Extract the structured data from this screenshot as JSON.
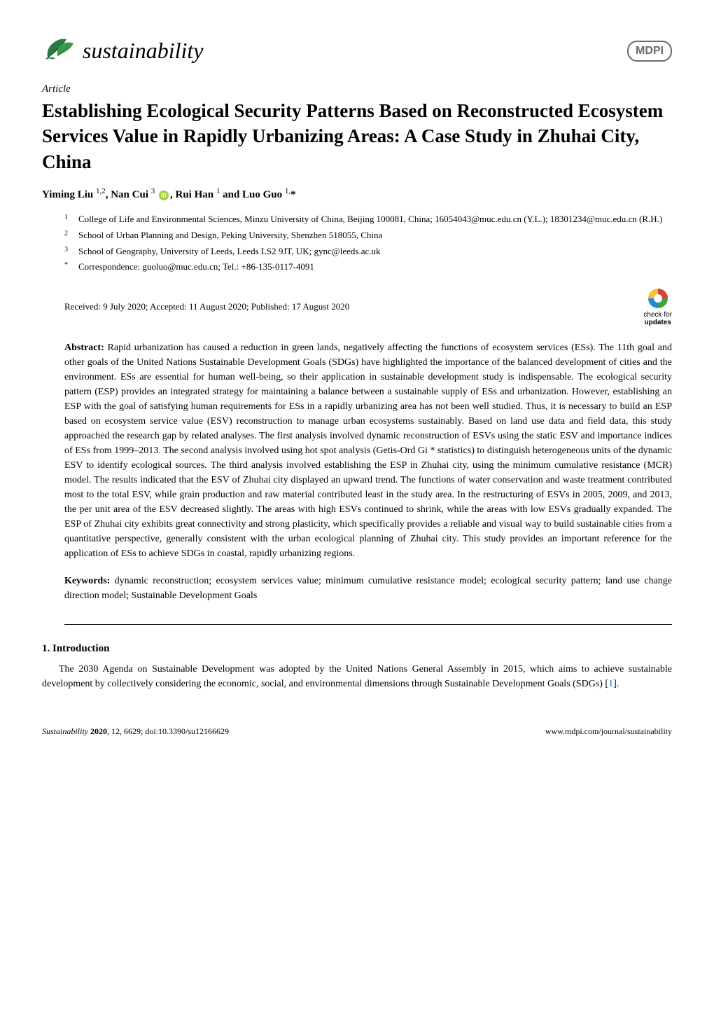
{
  "journal": {
    "name": "sustainability",
    "publisher": "MDPI",
    "leaf_color": "#2a7a3f"
  },
  "article_type": "Article",
  "title": "Establishing Ecological Security Patterns Based on Reconstructed Ecosystem Services Value in Rapidly Urbanizing Areas: A Case Study in Zhuhai City, China",
  "authors_html": "Yiming Liu <sup>1,2</sup>, Nan Cui <sup>3</sup> <span class=\"orcid-icon\"></span>, Rui Han <sup>1</sup> and Luo Guo <sup>1,</sup>*",
  "affiliations": [
    {
      "marker": "1",
      "text": "College of Life and Environmental Sciences, Minzu University of China, Beijing 100081, China; 16054043@muc.edu.cn (Y.L.); 18301234@muc.edu.cn (R.H.)"
    },
    {
      "marker": "2",
      "text": "School of Urban Planning and Design, Peking University, Shenzhen 518055, China"
    },
    {
      "marker": "3",
      "text": "School of Geography, University of Leeds, Leeds LS2 9JT, UK; gync@leeds.ac.uk"
    },
    {
      "marker": "*",
      "text": "Correspondence: guoluo@muc.edu.cn; Tel.: +86-135-0117-4091"
    }
  ],
  "dates": "Received: 9 July 2020; Accepted: 11 August 2020; Published: 17 August 2020",
  "check_updates": {
    "line1": "check for",
    "line2": "updates",
    "colors": {
      "red": "#e53935",
      "yellow": "#fbc02d",
      "green": "#43a047",
      "blue": "#1e88e5"
    }
  },
  "abstract_label": "Abstract:",
  "abstract": " Rapid urbanization has caused a reduction in green lands, negatively affecting the functions of ecosystem services (ESs). The 11th goal and other goals of the United Nations Sustainable Development Goals (SDGs) have highlighted the importance of the balanced development of cities and the environment. ESs are essential for human well-being, so their application in sustainable development study is indispensable. The ecological security pattern (ESP) provides an integrated strategy for maintaining a balance between a sustainable supply of ESs and urbanization. However, establishing an ESP with the goal of satisfying human requirements for ESs in a rapidly urbanizing area has not been well studied. Thus, it is necessary to build an ESP based on ecosystem service value (ESV) reconstruction to manage urban ecosystems sustainably. Based on land use data and field data, this study approached the research gap by related analyses. The first analysis involved dynamic reconstruction of ESVs using the static ESV and importance indices of ESs from 1999–2013. The second analysis involved using hot spot analysis (Getis-Ord Gi * statistics) to distinguish heterogeneous units of the dynamic ESV to identify ecological sources. The third analysis involved establishing the ESP in Zhuhai city, using the minimum cumulative resistance (MCR) model. The results indicated that the ESV of Zhuhai city displayed an upward trend. The functions of water conservation and waste treatment contributed most to the total ESV, while grain production and raw material contributed least in the study area. In the restructuring of ESVs in 2005, 2009, and 2013, the per unit area of the ESV decreased slightly. The areas with high ESVs continued to shrink, while the areas with low ESVs gradually expanded. The ESP of Zhuhai city exhibits great connectivity and strong plasticity, which specifically provides a reliable and visual way to build sustainable cities from a quantitative perspective, generally consistent with the urban ecological planning of Zhuhai city. This study provides an important reference for the application of ESs to achieve SDGs in coastal, rapidly urbanizing regions.",
  "keywords_label": "Keywords:",
  "keywords": " dynamic reconstruction; ecosystem services value; minimum cumulative resistance model; ecological security pattern; land use change direction model; Sustainable Development Goals",
  "section1": {
    "heading": "1. Introduction",
    "paragraph": "The 2030 Agenda on Sustainable Development was adopted by the United Nations General Assembly in 2015, which aims to achieve sustainable development by collectively considering the economic, social, and environmental dimensions through Sustainable Development Goals (SDGs) [",
    "ref": "1",
    "paragraph_end": "]."
  },
  "footer": {
    "left_italic": "Sustainability ",
    "left_bold": "2020",
    "left_rest": ", 12, 6629; doi:10.3390/su12166629",
    "right": "www.mdpi.com/journal/sustainability"
  }
}
